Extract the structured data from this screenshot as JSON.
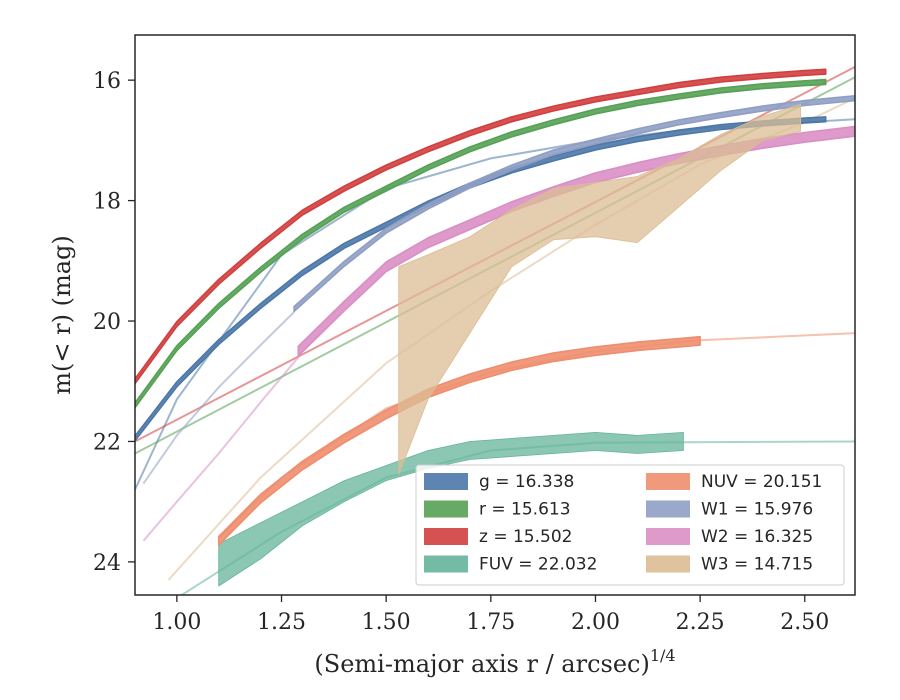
{
  "chart_data": {
    "type": "line",
    "xlabel": "(Semi-major axis r / arcsec)",
    "xlabel_superscript": "1/4",
    "ylabel": "m(< r) (mag)",
    "xlim": [
      0.9,
      2.62
    ],
    "ylim": [
      24.55,
      15.25
    ],
    "y_inverted": true,
    "grid": false,
    "legend_position": "lower-right",
    "xticks": [
      1.0,
      1.25,
      1.5,
      1.75,
      2.0,
      2.25,
      2.5
    ],
    "xtick_labels": [
      "1.00",
      "1.25",
      "1.50",
      "1.75",
      "2.00",
      "2.25",
      "2.50"
    ],
    "yticks": [
      16,
      18,
      20,
      22,
      24
    ],
    "ytick_labels": [
      "16",
      "18",
      "20",
      "22",
      "24"
    ],
    "series": [
      {
        "name": "g",
        "legend_label": "g = 16.338",
        "color": "#4c78a8",
        "data_start": 0.9,
        "data_end": 2.55,
        "band_halfwidth": 0.04,
        "model": [
          [
            0.9,
            22.8
          ],
          [
            1.0,
            21.3
          ],
          [
            1.25,
            18.9
          ],
          [
            1.5,
            17.8
          ],
          [
            1.75,
            17.3
          ],
          [
            2.0,
            17.0
          ],
          [
            2.25,
            16.8
          ],
          [
            2.5,
            16.7
          ],
          [
            2.62,
            16.65
          ]
        ],
        "x": [
          0.9,
          1.0,
          1.1,
          1.2,
          1.3,
          1.4,
          1.5,
          1.6,
          1.7,
          1.8,
          1.9,
          2.0,
          2.1,
          2.2,
          2.3,
          2.4,
          2.5,
          2.55
        ],
        "y": [
          21.95,
          21.05,
          20.35,
          19.75,
          19.2,
          18.75,
          18.4,
          18.05,
          17.75,
          17.5,
          17.3,
          17.12,
          16.98,
          16.87,
          16.78,
          16.72,
          16.67,
          16.65
        ]
      },
      {
        "name": "r",
        "legend_label": "r = 15.613",
        "color": "#55a155",
        "data_start": 0.9,
        "data_end": 2.55,
        "band_halfwidth": 0.04,
        "model": [
          [
            0.9,
            22.2
          ],
          [
            2.62,
            15.95
          ]
        ],
        "x": [
          0.9,
          1.0,
          1.1,
          1.2,
          1.3,
          1.4,
          1.5,
          1.6,
          1.7,
          1.8,
          1.9,
          2.0,
          2.1,
          2.2,
          2.3,
          2.4,
          2.5,
          2.55
        ],
        "y": [
          21.4,
          20.45,
          19.75,
          19.15,
          18.6,
          18.15,
          17.8,
          17.45,
          17.15,
          16.9,
          16.7,
          16.52,
          16.38,
          16.27,
          16.17,
          16.1,
          16.05,
          16.03
        ]
      },
      {
        "name": "z",
        "legend_label": "z = 15.502",
        "color": "#d23f3f",
        "data_start": 0.9,
        "data_end": 2.55,
        "band_halfwidth": 0.04,
        "model": [
          [
            0.9,
            22.0
          ],
          [
            2.62,
            15.78
          ]
        ],
        "x": [
          0.9,
          1.0,
          1.1,
          1.2,
          1.3,
          1.4,
          1.5,
          1.6,
          1.7,
          1.8,
          1.9,
          2.0,
          2.1,
          2.2,
          2.3,
          2.4,
          2.5,
          2.55
        ],
        "y": [
          21.0,
          20.05,
          19.35,
          18.75,
          18.2,
          17.8,
          17.45,
          17.15,
          16.88,
          16.65,
          16.47,
          16.32,
          16.2,
          16.08,
          15.99,
          15.93,
          15.88,
          15.86
        ]
      },
      {
        "name": "FUV",
        "legend_label": "FUV = 22.032",
        "color": "#64b49a",
        "data_start": 1.1,
        "data_end": 2.21,
        "model": [
          [
            0.9,
            25.2
          ],
          [
            1.0,
            24.6
          ],
          [
            1.25,
            23.5
          ],
          [
            1.5,
            22.6
          ],
          [
            1.75,
            22.15
          ],
          [
            2.0,
            22.02
          ],
          [
            2.62,
            22.0
          ]
        ],
        "x": [
          1.1,
          1.2,
          1.3,
          1.4,
          1.5,
          1.6,
          1.7,
          1.8,
          1.9,
          2.0,
          2.1,
          2.21
        ],
        "y_upper": [
          23.7,
          23.35,
          23.0,
          22.65,
          22.4,
          22.15,
          22.0,
          21.95,
          21.9,
          21.85,
          21.9,
          21.85
        ],
        "y_lower": [
          24.4,
          23.95,
          23.4,
          23.0,
          22.65,
          22.45,
          22.3,
          22.25,
          22.2,
          22.15,
          22.2,
          22.15
        ]
      },
      {
        "name": "NUV",
        "legend_label": "NUV = 20.151",
        "color": "#ee8e6e",
        "data_start": 1.1,
        "data_end": 2.25,
        "band_halfwidth": 0.07,
        "model": [
          [
            1.1,
            23.6
          ],
          [
            1.25,
            22.6
          ],
          [
            1.5,
            21.45
          ],
          [
            1.75,
            20.85
          ],
          [
            2.0,
            20.5
          ],
          [
            2.25,
            20.32
          ],
          [
            2.62,
            20.2
          ]
        ],
        "x": [
          1.1,
          1.2,
          1.3,
          1.4,
          1.5,
          1.6,
          1.7,
          1.8,
          1.9,
          2.0,
          2.1,
          2.2,
          2.25
        ],
        "y": [
          23.65,
          22.95,
          22.4,
          21.95,
          21.55,
          21.2,
          20.95,
          20.75,
          20.6,
          20.5,
          20.42,
          20.36,
          20.33
        ]
      },
      {
        "name": "W1",
        "legend_label": "W1 = 15.976",
        "color": "#8f9ec3",
        "data_start": 1.28,
        "data_end": 2.62,
        "band_halfwidth": 0.04,
        "model": [
          [
            0.92,
            22.7
          ],
          [
            1.0,
            21.9
          ],
          [
            1.1,
            21.1
          ],
          [
            1.2,
            20.4
          ],
          [
            1.28,
            19.85
          ]
        ],
        "x": [
          1.28,
          1.4,
          1.5,
          1.6,
          1.7,
          1.8,
          1.9,
          2.0,
          2.1,
          2.2,
          2.3,
          2.4,
          2.5,
          2.62
        ],
        "y": [
          19.8,
          19.05,
          18.5,
          18.1,
          17.75,
          17.45,
          17.2,
          17.02,
          16.85,
          16.7,
          16.58,
          16.47,
          16.38,
          16.3
        ]
      },
      {
        "name": "W2",
        "legend_label": "W2 = 16.325",
        "color": "#d98fc4",
        "data_start": 1.29,
        "data_end": 2.62,
        "band_halfwidth": 0.08,
        "model": [
          [
            0.92,
            23.65
          ],
          [
            1.0,
            23.0
          ],
          [
            1.1,
            22.2
          ],
          [
            1.2,
            21.35
          ],
          [
            1.29,
            20.6
          ]
        ],
        "x": [
          1.29,
          1.4,
          1.5,
          1.6,
          1.7,
          1.8,
          1.9,
          2.0,
          2.1,
          2.2,
          2.3,
          2.4,
          2.5,
          2.62
        ],
        "y": [
          20.5,
          19.75,
          19.1,
          18.7,
          18.4,
          18.1,
          17.85,
          17.62,
          17.45,
          17.3,
          17.17,
          17.05,
          16.95,
          16.85
        ]
      },
      {
        "name": "W3",
        "legend_label": "W3 = 14.715",
        "color": "#dbbd94",
        "data_start": 1.53,
        "data_end": 2.49,
        "model": [
          [
            0.98,
            24.3
          ],
          [
            1.2,
            22.6
          ],
          [
            1.5,
            20.7
          ],
          [
            1.75,
            19.5
          ],
          [
            2.0,
            18.4
          ],
          [
            2.25,
            17.4
          ],
          [
            2.5,
            16.7
          ],
          [
            2.62,
            16.3
          ]
        ],
        "x": [
          1.53,
          1.6,
          1.7,
          1.8,
          1.9,
          2.0,
          2.1,
          2.2,
          2.3,
          2.4,
          2.49
        ],
        "y_upper": [
          19.1,
          18.9,
          18.6,
          18.15,
          17.8,
          17.7,
          17.6,
          17.3,
          16.9,
          16.6,
          16.4
        ],
        "y_lower": [
          22.55,
          21.3,
          20.2,
          19.1,
          18.65,
          18.6,
          18.7,
          18.1,
          17.5,
          17.0,
          16.85
        ]
      }
    ]
  }
}
